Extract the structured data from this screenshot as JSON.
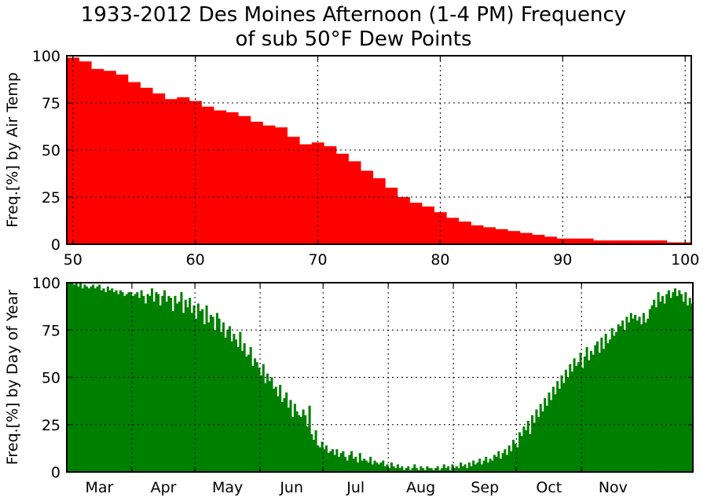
{
  "title_line1": "1933-2012 Des Moines Afternoon (1-4 PM) Frequency",
  "title_line2": "of sub 50°F Dew Points",
  "chart_data": [
    {
      "type": "bar",
      "name": "by-air-temp",
      "ylabel": "Freq.[%] by Air Temp",
      "xlim": [
        49.5,
        100.5
      ],
      "ylim": [
        0,
        100
      ],
      "xticks": [
        50,
        60,
        70,
        80,
        90,
        100
      ],
      "yticks": [
        0,
        25,
        50,
        75,
        100
      ],
      "grid": true,
      "color": "#ff0000",
      "x": [
        50,
        51,
        52,
        53,
        54,
        55,
        56,
        57,
        58,
        59,
        60,
        61,
        62,
        63,
        64,
        65,
        66,
        67,
        68,
        69,
        70,
        71,
        72,
        73,
        74,
        75,
        76,
        77,
        78,
        79,
        80,
        81,
        82,
        83,
        84,
        85,
        86,
        87,
        88,
        89,
        90,
        91,
        92,
        93,
        94,
        95,
        96,
        97,
        98,
        99,
        100
      ],
      "values": [
        99,
        97,
        93,
        92,
        90,
        86,
        83,
        80,
        77,
        78,
        76,
        73,
        71,
        70,
        68,
        65,
        63,
        62,
        57,
        53,
        54,
        52,
        48,
        44,
        39,
        35,
        30,
        25,
        22,
        20,
        17,
        14,
        12,
        10,
        9,
        8,
        7,
        6,
        5,
        4,
        3,
        3,
        3,
        2,
        2,
        2,
        2,
        2,
        2,
        1,
        1
      ]
    },
    {
      "type": "bar",
      "name": "by-day-of-year",
      "ylabel": "Freq.[%] by Day of Year",
      "ylim": [
        0,
        100
      ],
      "yticks": [
        0,
        25,
        50,
        75,
        100
      ],
      "grid": true,
      "color": "#008000",
      "month_labels": [
        "Mar",
        "Apr",
        "May",
        "Jun",
        "Jul",
        "Aug",
        "Sep",
        "Oct",
        "Nov"
      ],
      "x_start_day": 1,
      "days_per_month": [
        31,
        30,
        31,
        30,
        31,
        31,
        30,
        31,
        30
      ],
      "values": [
        100,
        100,
        100,
        99,
        100,
        98,
        100,
        97,
        99,
        98,
        97,
        98,
        99,
        97,
        98,
        99,
        96,
        97,
        95,
        98,
        96,
        97,
        95,
        96,
        94,
        96,
        95,
        93,
        94,
        95,
        95,
        93,
        94,
        95,
        92,
        96,
        93,
        89,
        94,
        93,
        97,
        90,
        95,
        94,
        88,
        93,
        96,
        90,
        93,
        92,
        85,
        93,
        89,
        90,
        95,
        84,
        91,
        87,
        92,
        84,
        88,
        81,
        89,
        85,
        86,
        78,
        88,
        79,
        83,
        82,
        75,
        84,
        81,
        74,
        79,
        71,
        75,
        77,
        69,
        73,
        70,
        66,
        74,
        64,
        68,
        61,
        62,
        66,
        56,
        60,
        58,
        55,
        51,
        57,
        47,
        52,
        48,
        50,
        44,
        45,
        40,
        46,
        37,
        39,
        42,
        34,
        38,
        29,
        36,
        32,
        30,
        29,
        33,
        30,
        24,
        35,
        20,
        17,
        22,
        14,
        13,
        16,
        12,
        14,
        10,
        11,
        12,
        9,
        12,
        8,
        10,
        11,
        8,
        6,
        9,
        11,
        7,
        8,
        5,
        10,
        6,
        7,
        6,
        5,
        8,
        4,
        6,
        5,
        4,
        5,
        6,
        3,
        4,
        2,
        5,
        3,
        2,
        4,
        2,
        3,
        1,
        2,
        3,
        1,
        2,
        4,
        2,
        1,
        3,
        2,
        1,
        3,
        2,
        2,
        1,
        2,
        3,
        1,
        2,
        4,
        2,
        3,
        1,
        4,
        2,
        3,
        2,
        5,
        3,
        4,
        2,
        5,
        3,
        6,
        4,
        5,
        7,
        4,
        6,
        8,
        5,
        7,
        6,
        9,
        8,
        11,
        7,
        10,
        12,
        9,
        14,
        11,
        17,
        15,
        13,
        21,
        19,
        24,
        22,
        27,
        20,
        30,
        26,
        33,
        29,
        36,
        32,
        39,
        35,
        42,
        38,
        45,
        41,
        48,
        44,
        51,
        47,
        54,
        50,
        57,
        53,
        60,
        56,
        58,
        63,
        55,
        61,
        66,
        59,
        64,
        62,
        67,
        69,
        63,
        71,
        65,
        73,
        68,
        70,
        76,
        72,
        74,
        78,
        77,
        80,
        75,
        82,
        79,
        84,
        81,
        83,
        80,
        82,
        78,
        84,
        79,
        81,
        86,
        88,
        91,
        87,
        95,
        90,
        93,
        89,
        94,
        96,
        92,
        95,
        97,
        93,
        96,
        94,
        90,
        95,
        88,
        92,
        89
      ]
    }
  ]
}
